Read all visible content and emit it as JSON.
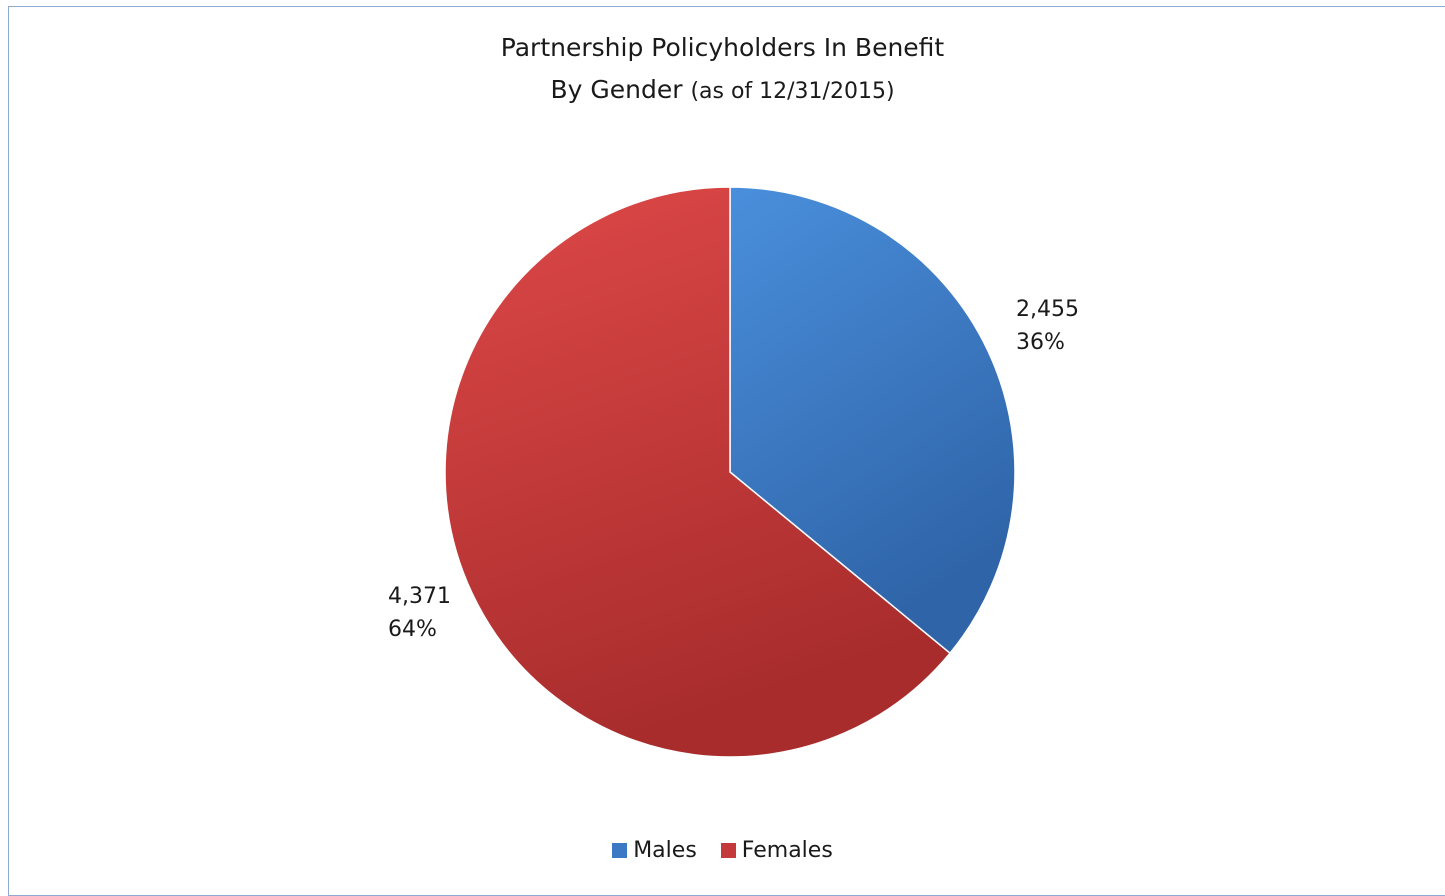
{
  "chart_data": {
    "type": "pie",
    "title": "Partnership Policyholders In Benefit",
    "subtitle_main": "By Gender",
    "subtitle_note": "(as of 12/31/2015)",
    "categories": [
      "Males",
      "Females"
    ],
    "values": [
      2455,
      4371
    ],
    "value_labels": [
      "2,455",
      "4,371"
    ],
    "percent_labels": [
      "36%",
      "64%"
    ],
    "colors": [
      "#3b79c4",
      "#c43a3a"
    ],
    "legend_position": "bottom"
  }
}
